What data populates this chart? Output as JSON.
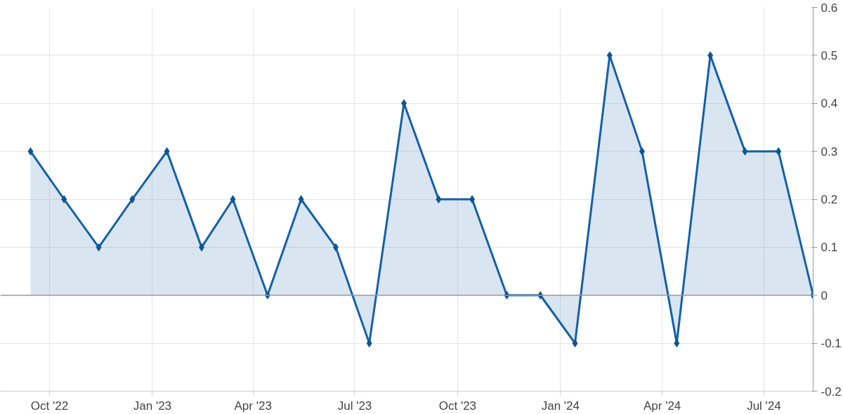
{
  "chart_data": {
    "type": "area",
    "x": [
      "2022-09-14",
      "2022-10-14",
      "2022-11-14",
      "2022-12-14",
      "2023-01-14",
      "2023-02-14",
      "2023-03-14",
      "2023-04-14",
      "2023-05-14",
      "2023-06-14",
      "2023-07-14",
      "2023-08-14",
      "2023-09-14",
      "2023-10-14",
      "2023-11-14",
      "2023-12-14",
      "2024-01-14",
      "2024-02-14",
      "2024-03-14",
      "2024-04-14",
      "2024-05-14",
      "2024-06-14",
      "2024-07-14",
      "2024-08-14"
    ],
    "series": [
      {
        "color": "#1460a8",
        "values": [
          0.3,
          0.2,
          0.1,
          0.2,
          0.3,
          0.1,
          0.2,
          0,
          0.2,
          0.1,
          -0.1,
          0.4,
          0.2,
          0.2,
          0,
          0,
          -0.1,
          0.5,
          0.3,
          -0.1,
          0.5,
          0.3,
          0.3,
          0
        ]
      }
    ],
    "xlim": [
      "2022-08-18",
      "2024-08-14"
    ],
    "xticks": [
      {
        "value": "2022-10-01",
        "label": "Oct '22"
      },
      {
        "value": "2023-01-01",
        "label": "Jan '23"
      },
      {
        "value": "2023-04-01",
        "label": "Apr '23"
      },
      {
        "value": "2023-07-01",
        "label": "Jul '23"
      },
      {
        "value": "2023-10-01",
        "label": "Oct '23"
      },
      {
        "value": "2024-01-01",
        "label": "Jan '24"
      },
      {
        "value": "2024-04-01",
        "label": "Apr '24"
      },
      {
        "value": "2024-07-01",
        "label": "Jul '24"
      }
    ],
    "ylim": [
      -0.2,
      0.6
    ],
    "yticks": [
      -0.2,
      -0.1,
      0,
      0.1,
      0.2,
      0.3,
      0.4,
      0.5,
      0.6
    ],
    "ref_lines": [
      {
        "axis": "y",
        "value": 0,
        "label": null,
        "color": "#9a9a9a"
      }
    ],
    "grid": true,
    "marker": "diamond",
    "line_style": "solid"
  }
}
